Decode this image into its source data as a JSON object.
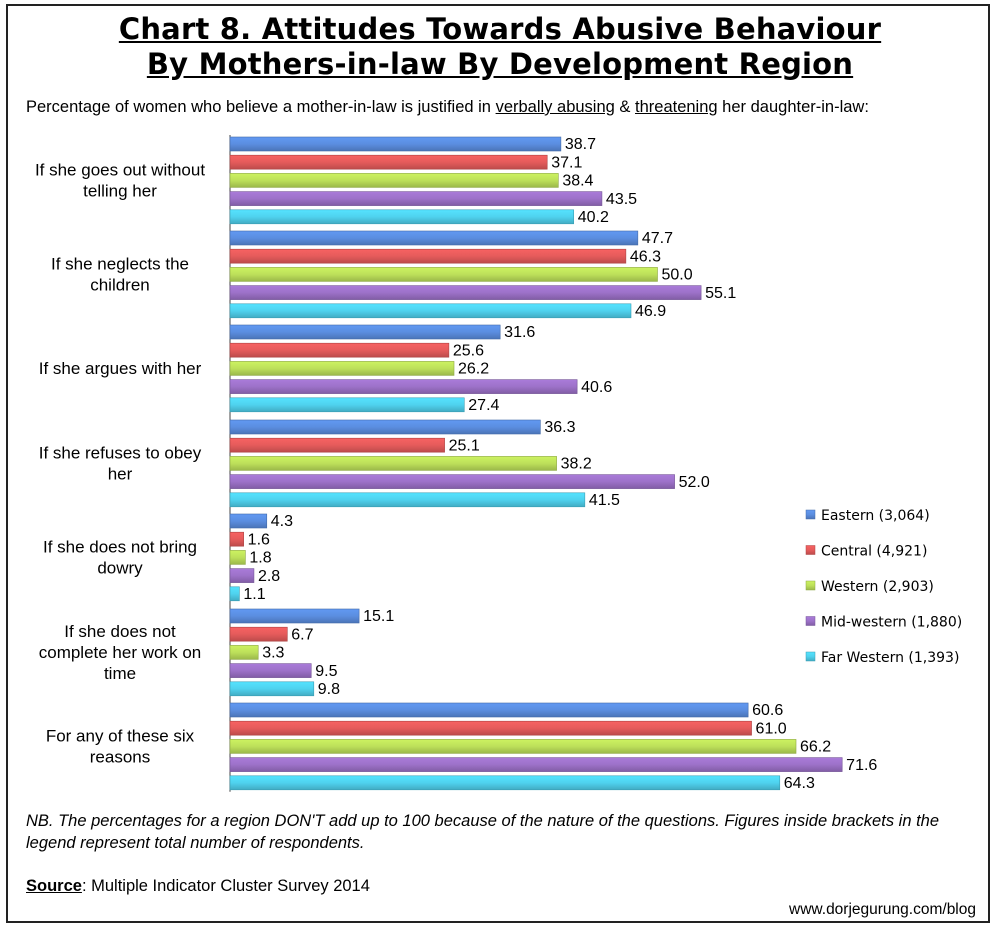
{
  "title_line1": "Chart 8. Attitudes Towards Abusive Behaviour",
  "title_line2": "By Mothers-in-law By Development Region",
  "subtitle_pre": "Percentage of women who believe a mother-in-law is justified in ",
  "subtitle_u1": "verbally abusing",
  "subtitle_mid": " & ",
  "subtitle_u2": "threatening",
  "subtitle_post": " her daughter-in-law:",
  "note": "NB. The percentages for a region DON'T add up to 100 because of the nature of the questions. Figures inside brackets in the legend represent total number of respondents.",
  "source_label": "Source",
  "source_text": ": Multiple Indicator Cluster Survey 2014",
  "website": "www.dorjegurung.com/blog",
  "chart_data": {
    "type": "bar",
    "orientation": "horizontal",
    "categories": [
      [
        "If she goes out without",
        "telling her"
      ],
      [
        "If she neglects the",
        "children"
      ],
      [
        "If she argues with her"
      ],
      [
        "If she refuses to obey",
        "her"
      ],
      [
        "If she does not bring",
        "dowry"
      ],
      [
        "If she does not",
        "complete her work on",
        "time"
      ],
      [
        "For any of these six",
        "reasons"
      ]
    ],
    "series": [
      {
        "name": "Eastern (3,064)",
        "color": "#5b8ee0",
        "values": [
          38.7,
          47.7,
          31.6,
          36.3,
          4.3,
          15.1,
          60.6
        ]
      },
      {
        "name": "Central (4,921)",
        "color": "#e55b5b",
        "values": [
          37.1,
          46.3,
          25.6,
          25.1,
          1.6,
          6.7,
          61.0
        ]
      },
      {
        "name": "Western (2,903)",
        "color": "#bde05a",
        "values": [
          38.4,
          50.0,
          26.2,
          38.2,
          1.8,
          3.3,
          66.2
        ]
      },
      {
        "name": "Mid-western (1,880)",
        "color": "#9d72c9",
        "values": [
          43.5,
          55.1,
          40.6,
          52.0,
          2.8,
          9.5,
          71.6
        ]
      },
      {
        "name": "Far Western (1,393)",
        "color": "#4fd2ee",
        "values": [
          40.2,
          46.9,
          27.4,
          41.5,
          1.1,
          9.8,
          64.3
        ]
      }
    ],
    "legend_position": "right",
    "grid": false
  }
}
